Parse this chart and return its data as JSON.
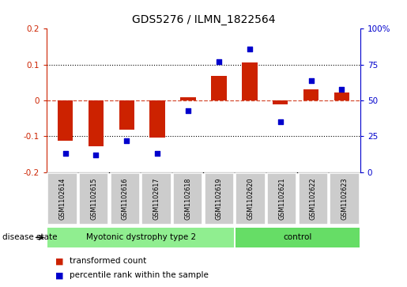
{
  "title": "GDS5276 / ILMN_1822564",
  "samples": [
    "GSM1102614",
    "GSM1102615",
    "GSM1102616",
    "GSM1102617",
    "GSM1102618",
    "GSM1102619",
    "GSM1102620",
    "GSM1102621",
    "GSM1102622",
    "GSM1102623"
  ],
  "red_bars": [
    -0.113,
    -0.128,
    -0.082,
    -0.103,
    0.01,
    0.068,
    0.105,
    -0.012,
    0.032,
    0.022
  ],
  "blue_dots_pct": [
    13,
    12,
    22,
    13,
    43,
    77,
    86,
    35,
    64,
    58
  ],
  "ylim_left": [
    -0.2,
    0.2
  ],
  "ylim_right": [
    0,
    100
  ],
  "yticks_left": [
    -0.2,
    -0.1,
    0.0,
    0.1,
    0.2
  ],
  "yticks_right": [
    0,
    25,
    50,
    75,
    100
  ],
  "ytick_labels_left": [
    "-0.2",
    "-0.1",
    "0",
    "0.1",
    "0.2"
  ],
  "ytick_labels_right": [
    "0",
    "25",
    "50",
    "75",
    "100%"
  ],
  "group1_label": "Myotonic dystrophy type 2",
  "group1_count": 6,
  "group2_label": "control",
  "group2_count": 4,
  "disease_state_label": "disease state",
  "legend1_label": "transformed count",
  "legend2_label": "percentile rank within the sample",
  "red_color": "#cc2200",
  "blue_color": "#0000cc",
  "bar_width": 0.5,
  "group1_color": "#90ee90",
  "group2_color": "#66dd66",
  "sample_box_color": "#cccccc",
  "title_fontsize": 10,
  "tick_fontsize": 7.5,
  "label_fontsize": 7.5
}
